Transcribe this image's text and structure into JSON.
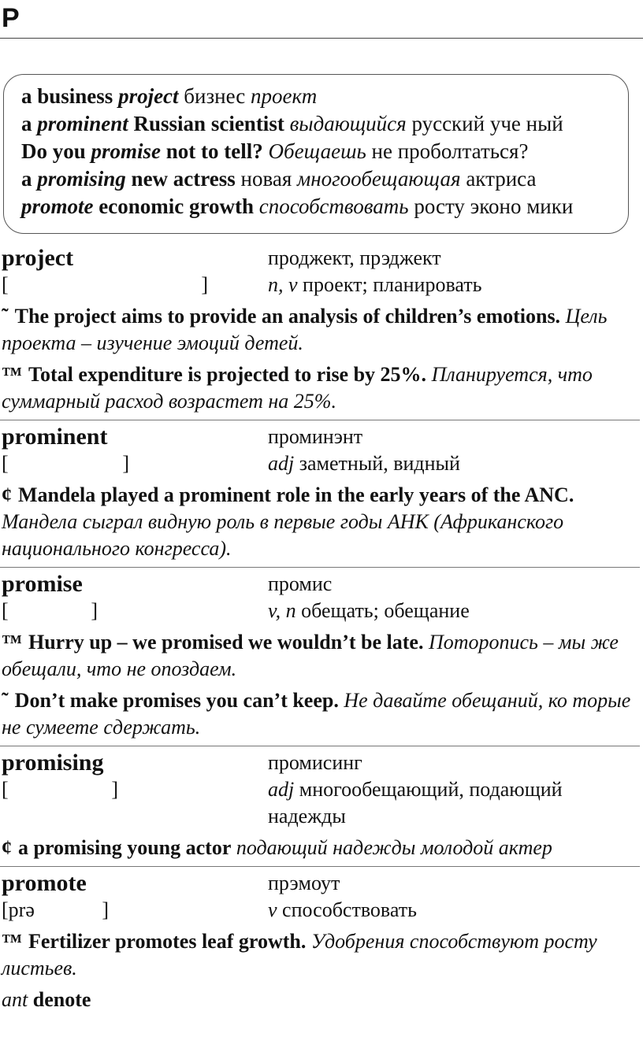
{
  "header": {
    "letter": "P"
  },
  "box": {
    "lines": [
      [
        "a business ",
        "project",
        " бизнес ",
        "проект"
      ],
      [
        "a ",
        "prominent",
        " Russian scientist ",
        "выдающийся",
        " русский уче ный"
      ],
      [
        "Do you ",
        "promise",
        " not to tell? ",
        "Обещаешь",
        " не проболтаться?"
      ],
      [
        "a ",
        "promising",
        " new actress ",
        "новая ",
        "многообещающая",
        " актриса"
      ],
      [
        "promote",
        " economic growth ",
        "способствовать",
        " росту эконо мики"
      ]
    ]
  },
  "entries": [
    {
      "word": "project",
      "pron": "проджект, прэджект",
      "ipa": [
        "[",
        "]"
      ],
      "pos": "n, v",
      "gloss": "проект; планировать",
      "examples": [
        {
          "marker": "˜",
          "en": "The project aims to provide an analysis of children’s emotions.",
          "ru": "Цель проекта – изучение эмоций детей."
        },
        {
          "marker": "™",
          "en": "Total expenditure is projected to rise by 25%.",
          "ru": "Планируется, что суммарный расход возрастет на 25%."
        }
      ]
    },
    {
      "word": "prominent",
      "pron": "проминэнт",
      "ipa": [
        "[",
        "]"
      ],
      "pos": "adj",
      "gloss": "заметный, видный",
      "examples": [
        {
          "marker": "¢",
          "en": "Mandela played a prominent role in the early years of the ANC.",
          "ru": "Мандела сыграл видную роль в первые годы АНК (Африканского национального конгресса)."
        }
      ]
    },
    {
      "word": "promise",
      "pron": "промис",
      "ipa": [
        "[",
        "]"
      ],
      "pos": "v, n",
      "gloss": "обещать; обещание",
      "examples": [
        {
          "marker": "™",
          "en": "Hurry up – we promised we wouldn’t be late.",
          "ru": "Поторопись – мы же обещали, что не опоздаем."
        },
        {
          "marker": "˜",
          "en": "Don’t make promises you can’t keep.",
          "ru": "Не давайте обещаний, ко торые не сумеете сдержать."
        }
      ]
    },
    {
      "word": "promising",
      "pron": "промисинг",
      "ipa": [
        "[",
        "]"
      ],
      "pos": "adj",
      "gloss": "многообещающий, подающий надежды",
      "examples": [
        {
          "marker": "¢",
          "en": "a promising young actor",
          "ru": "подающий надежды молодой актер"
        }
      ]
    },
    {
      "word": "promote",
      "pron": "прэмоут",
      "ipa": [
        "[prə",
        "]"
      ],
      "pos": "v",
      "gloss": "способствовать",
      "examples": [
        {
          "marker": "™",
          "en": "Fertilizer promotes leaf growth.",
          "ru": "Удобрения способствуют росту листьев."
        }
      ],
      "antonym": {
        "label": "ant",
        "word": "denote"
      }
    }
  ]
}
